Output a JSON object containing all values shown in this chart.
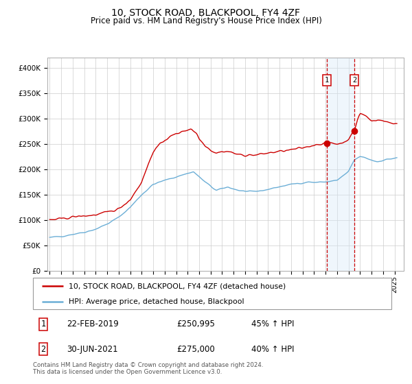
{
  "title": "10, STOCK ROAD, BLACKPOOL, FY4 4ZF",
  "subtitle": "Price paid vs. HM Land Registry's House Price Index (HPI)",
  "footer": "Contains HM Land Registry data © Crown copyright and database right 2024.\nThis data is licensed under the Open Government Licence v3.0.",
  "legend_line1": "10, STOCK ROAD, BLACKPOOL, FY4 4ZF (detached house)",
  "legend_line2": "HPI: Average price, detached house, Blackpool",
  "annotation1_num": "1",
  "annotation1_date": "22-FEB-2019",
  "annotation1_price": "£250,995",
  "annotation1_hpi": "45% ↑ HPI",
  "annotation2_num": "2",
  "annotation2_date": "30-JUN-2021",
  "annotation2_price": "£275,000",
  "annotation2_hpi": "40% ↑ HPI",
  "sale1_x": 2019.13,
  "sale1_y": 250995,
  "sale2_x": 2021.5,
  "sale2_y": 275000,
  "vline1_x": 2019.13,
  "vline2_x": 2021.5,
  "shade_x1": 2019.13,
  "shade_x2": 2021.5,
  "hpi_color": "#6baed6",
  "price_color": "#cc0000",
  "dot_color": "#cc0000",
  "vline_color": "#cc0000",
  "shade_color": "#d8eaf8",
  "ylim_min": 0,
  "ylim_max": 420000,
  "yticks": [
    0,
    50000,
    100000,
    150000,
    200000,
    250000,
    300000,
    350000,
    400000
  ],
  "ytick_labels": [
    "£0",
    "£50K",
    "£100K",
    "£150K",
    "£200K",
    "£250K",
    "£300K",
    "£350K",
    "£400K"
  ],
  "xlim_min": 1994.8,
  "xlim_max": 2025.8,
  "xtick_years": [
    1995,
    1996,
    1997,
    1998,
    1999,
    2000,
    2001,
    2002,
    2003,
    2004,
    2005,
    2006,
    2007,
    2008,
    2009,
    2010,
    2011,
    2012,
    2013,
    2014,
    2015,
    2016,
    2017,
    2018,
    2019,
    2020,
    2021,
    2022,
    2023,
    2024,
    2025
  ],
  "hpi_anchors_x": [
    1995.0,
    1996.0,
    1997.0,
    1998.0,
    1999.0,
    2000.0,
    2001.0,
    2002.0,
    2003.0,
    2004.0,
    2005.0,
    2006.0,
    2007.0,
    2007.5,
    2008.5,
    2009.5,
    2010.5,
    2011.5,
    2012.5,
    2013.5,
    2014.5,
    2015.5,
    2016.5,
    2017.5,
    2018.0,
    2019.0,
    2020.0,
    2021.0,
    2021.5,
    2022.0,
    2022.5,
    2023.0,
    2023.5,
    2024.0,
    2024.5,
    2025.2
  ],
  "hpi_anchors_y": [
    65000,
    68000,
    72000,
    76000,
    82000,
    92000,
    105000,
    125000,
    150000,
    170000,
    178000,
    185000,
    192000,
    195000,
    175000,
    158000,
    165000,
    158000,
    155000,
    158000,
    163000,
    168000,
    172000,
    175000,
    174000,
    175000,
    178000,
    195000,
    218000,
    225000,
    222000,
    218000,
    215000,
    218000,
    220000,
    222000
  ],
  "price_anchors_x": [
    1995.0,
    1996.0,
    1997.0,
    1998.0,
    1999.0,
    2000.0,
    2001.0,
    2002.0,
    2003.0,
    2004.0,
    2005.0,
    2006.0,
    2007.0,
    2007.3,
    2007.8,
    2008.0,
    2008.5,
    2009.0,
    2009.5,
    2010.0,
    2010.5,
    2011.0,
    2011.5,
    2012.0,
    2013.0,
    2014.0,
    2015.0,
    2016.0,
    2017.0,
    2018.0,
    2018.5,
    2019.13,
    2019.5,
    2020.0,
    2020.5,
    2021.0,
    2021.5,
    2021.8,
    2022.0,
    2022.5,
    2023.0,
    2023.5,
    2024.0,
    2024.5,
    2025.2
  ],
  "price_anchors_y": [
    100000,
    102000,
    106000,
    108000,
    110000,
    115000,
    122000,
    140000,
    175000,
    235000,
    258000,
    270000,
    278000,
    280000,
    270000,
    260000,
    248000,
    238000,
    232000,
    235000,
    235000,
    232000,
    228000,
    228000,
    228000,
    232000,
    235000,
    238000,
    242000,
    248000,
    250000,
    250995,
    252000,
    250000,
    252000,
    260000,
    275000,
    300000,
    310000,
    305000,
    295000,
    298000,
    295000,
    292000,
    290000
  ]
}
